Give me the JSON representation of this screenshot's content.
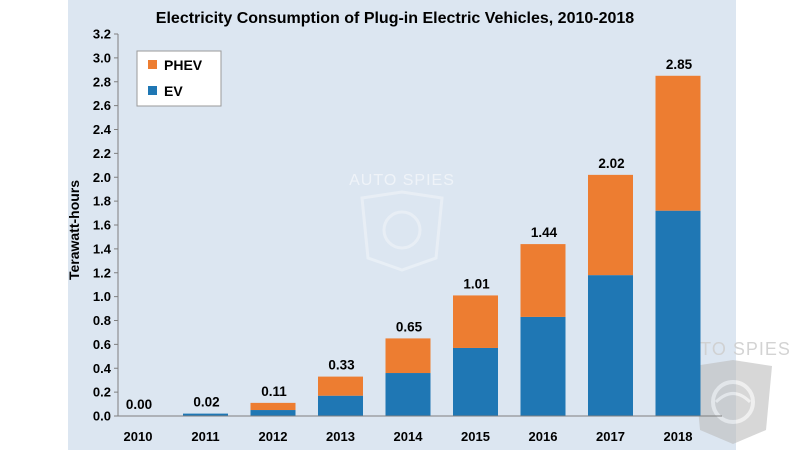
{
  "chart_data": {
    "type": "bar",
    "stacked": true,
    "title": "Electricity Consumption of Plug-in Electric Vehicles, 2010-2018",
    "ylabel": "Terawatt-hours",
    "xlabel": "",
    "categories": [
      "2010",
      "2011",
      "2012",
      "2013",
      "2014",
      "2015",
      "2016",
      "2017",
      "2018"
    ],
    "series": [
      {
        "name": "EV",
        "color": "#1f77b4",
        "values": [
          0.0,
          0.02,
          0.05,
          0.17,
          0.36,
          0.57,
          0.83,
          1.18,
          1.72
        ]
      },
      {
        "name": "PHEV",
        "color": "#ed7d31",
        "values": [
          0.0,
          0.0,
          0.06,
          0.16,
          0.29,
          0.44,
          0.61,
          0.84,
          1.13
        ]
      }
    ],
    "totals": [
      "0.00",
      "0.02",
      "0.11",
      "0.33",
      "0.65",
      "1.01",
      "1.44",
      "2.02",
      "2.85"
    ],
    "ylim": [
      0,
      3.2
    ],
    "yticks": [
      "0.0",
      "0.2",
      "0.4",
      "0.6",
      "0.8",
      "1.0",
      "1.2",
      "1.4",
      "1.6",
      "1.8",
      "2.0",
      "2.2",
      "2.4",
      "2.6",
      "2.8",
      "3.0",
      "3.2"
    ],
    "legend": {
      "placement": "top-left",
      "order": [
        "PHEV",
        "EV"
      ]
    },
    "grid": false
  },
  "watermark": {
    "text": "AUTO SPIES"
  }
}
